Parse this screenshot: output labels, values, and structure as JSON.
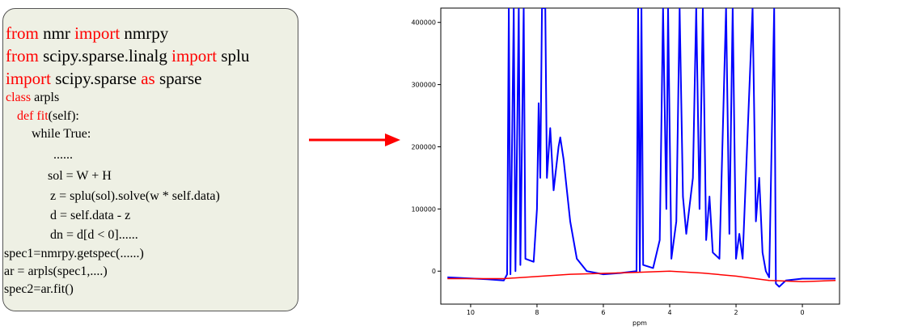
{
  "code": {
    "lines": [
      [
        {
          "text": "from",
          "color": "#ff0000"
        },
        {
          "text": " nmr "
        },
        {
          "text": "import",
          "color": "#ff0000"
        },
        {
          "text": " nmrpy"
        }
      ],
      [
        {
          "text": "from",
          "color": "#ff0000"
        },
        {
          "text": " scipy.sparse.linalg "
        },
        {
          "text": "import",
          "color": "#ff0000"
        },
        {
          "text": " splu"
        }
      ],
      [
        {
          "text": "import",
          "color": "#ff0000"
        },
        {
          "text": " scipy.sparse "
        },
        {
          "text": "as",
          "color": "#ff0000"
        },
        {
          "text": " sparse"
        }
      ],
      [
        {
          "text": "class",
          "color": "#ff0000"
        },
        {
          "text": " arpls"
        }
      ],
      [
        {
          "text": "def fit",
          "color": "#ff0000"
        },
        {
          "text": "(self):"
        }
      ],
      [
        {
          "text": "while True:"
        }
      ],
      [
        {
          "text": "......"
        }
      ],
      [
        {
          "text": "sol = W + H"
        }
      ],
      [
        {
          "text": "z = splu(sol).solve(w * self.data)"
        }
      ],
      [
        {
          "text": "d = self.data - z"
        }
      ],
      [
        {
          "text": "dn = d[d < 0]......"
        }
      ],
      [
        {
          "text": "spec1=nmrpy.getspec(......)"
        }
      ],
      [
        {
          "text": "ar = arpls(spec1,....)"
        }
      ],
      [
        {
          "text": "spec2=ar.fit()"
        }
      ]
    ]
  },
  "chart_data": {
    "type": "line",
    "xlabel": "ppm",
    "xlim": [
      10.9,
      -1.12
    ],
    "ylim": [
      -53000,
      423000
    ],
    "xticks": [
      10,
      8,
      6,
      4,
      2,
      0
    ],
    "yticks": [
      0,
      100000,
      200000,
      300000,
      400000
    ],
    "series": [
      {
        "color": "#0000ff",
        "x": [
          10.7,
          9.5,
          9.0,
          8.9,
          8.85,
          8.8,
          8.7,
          8.65,
          8.55,
          8.5,
          8.4,
          8.35,
          8.1,
          8.0,
          7.95,
          7.9,
          7.85,
          7.75,
          7.7,
          7.6,
          7.5,
          7.35,
          7.3,
          7.2,
          7.0,
          6.8,
          6.5,
          6.0,
          5.5,
          5.0,
          4.95,
          4.9,
          4.85,
          4.8,
          4.5,
          4.3,
          4.2,
          4.1,
          4.05,
          3.95,
          3.8,
          3.7,
          3.6,
          3.5,
          3.3,
          3.2,
          3.1,
          3.0,
          2.9,
          2.8,
          2.7,
          2.5,
          2.3,
          2.2,
          2.1,
          2.0,
          1.9,
          1.8,
          1.5,
          1.4,
          1.3,
          1.2,
          1.1,
          1.0,
          0.85,
          0.8,
          0.7,
          0.5,
          0,
          -1
        ],
        "values": [
          -10000,
          -13000,
          -15000,
          -5000,
          423000,
          -5000,
          423000,
          0,
          423000,
          10000,
          423000,
          20000,
          15000,
          100000,
          270000,
          150000,
          423000,
          423000,
          150000,
          230000,
          130000,
          200000,
          215000,
          180000,
          80000,
          20000,
          0,
          -5000,
          -3000,
          0,
          423000,
          0,
          423000,
          10000,
          5000,
          50000,
          423000,
          100000,
          423000,
          20000,
          80000,
          423000,
          120000,
          60000,
          150000,
          423000,
          100000,
          423000,
          50000,
          120000,
          30000,
          20000,
          423000,
          60000,
          423000,
          20000,
          60000,
          20000,
          423000,
          80000,
          150000,
          30000,
          0,
          -10000,
          423000,
          -20000,
          -25000,
          -15000,
          -12000,
          -12000
        ]
      },
      {
        "color": "#ff0000",
        "x": [
          10.7,
          9,
          7,
          5,
          4,
          3,
          2,
          1,
          0,
          -1
        ],
        "values": [
          -12000,
          -12000,
          -5000,
          -2000,
          0,
          -3000,
          -8000,
          -15000,
          -17000,
          -15000
        ]
      }
    ]
  }
}
